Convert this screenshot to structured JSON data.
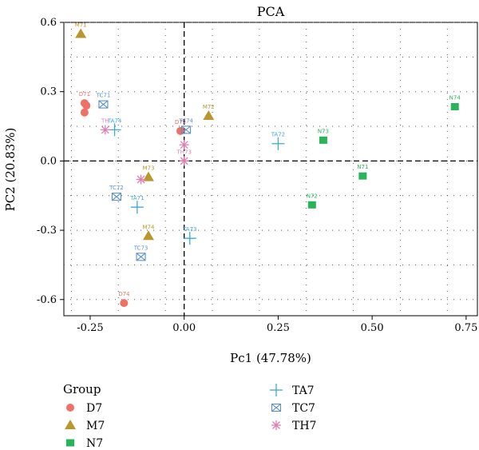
{
  "chart_data": {
    "type": "scatter",
    "title": "PCA",
    "xlabel": "Pc1 (47.78%)",
    "ylabel": "PC2 (20.83%)",
    "xlim": [
      -0.32,
      0.78
    ],
    "ylim": [
      -0.67,
      0.6
    ],
    "x_ticks": [
      -0.25,
      0.0,
      0.25,
      0.5,
      0.75
    ],
    "x_tick_labels": [
      "-0.25",
      "0.00",
      "0.25",
      "0.50",
      "0.75"
    ],
    "y_ticks": [
      -0.6,
      -0.3,
      0.0,
      0.3,
      0.6
    ],
    "y_tick_labels": [
      "-0.6",
      "-0.3",
      "0.0",
      "0.3",
      "0.6"
    ],
    "grid": "dotted",
    "reference_lines": "dashed at x=0 and y=0",
    "legend_placement": "bottom",
    "legend_title": "Group",
    "series": [
      {
        "name": "D7",
        "marker": "circle",
        "color": "#ee7066",
        "points": [
          {
            "label": "D71",
            "x": -0.265,
            "y": 0.25
          },
          {
            "label": "",
            "x": -0.26,
            "y": 0.24
          },
          {
            "label": "",
            "x": -0.265,
            "y": 0.21
          },
          {
            "label": "D72",
            "x": -0.01,
            "y": 0.13
          },
          {
            "label": "D74",
            "x": -0.16,
            "y": -0.615
          }
        ]
      },
      {
        "name": "M7",
        "marker": "triangle",
        "color": "#b9972e",
        "points": [
          {
            "label": "M71",
            "x": -0.275,
            "y": 0.55
          },
          {
            "label": "M72",
            "x": 0.065,
            "y": 0.195
          },
          {
            "label": "M73",
            "x": -0.095,
            "y": -0.07
          },
          {
            "label": "M74",
            "x": -0.095,
            "y": -0.325
          }
        ]
      },
      {
        "name": "N7",
        "marker": "square",
        "color": "#27b45a",
        "points": [
          {
            "label": "N74",
            "x": 0.72,
            "y": 0.235
          },
          {
            "label": "N73",
            "x": 0.37,
            "y": 0.09
          },
          {
            "label": "N71",
            "x": 0.475,
            "y": -0.065
          },
          {
            "label": "N72",
            "x": 0.34,
            "y": -0.19
          }
        ]
      },
      {
        "name": "TA7",
        "marker": "plus",
        "color": "#3ba9d8",
        "points": [
          {
            "label": "TA74",
            "x": -0.185,
            "y": 0.135
          },
          {
            "label": "TA72",
            "x": 0.25,
            "y": 0.075
          },
          {
            "label": "TA71",
            "x": -0.125,
            "y": -0.2
          },
          {
            "label": "TA73",
            "x": 0.015,
            "y": -0.335
          }
        ]
      },
      {
        "name": "TC7",
        "marker": "boxx",
        "color": "#5a8fc8",
        "points": [
          {
            "label": "TC71",
            "x": -0.215,
            "y": 0.245
          },
          {
            "label": "TC74",
            "x": 0.005,
            "y": 0.135
          },
          {
            "label": "TC72",
            "x": -0.18,
            "y": -0.155
          },
          {
            "label": "TC73",
            "x": -0.115,
            "y": -0.415
          }
        ]
      },
      {
        "name": "TH7",
        "marker": "star",
        "color": "#e07fb4",
        "points": [
          {
            "label": "TH",
            "x": -0.21,
            "y": 0.135
          },
          {
            "label": "",
            "x": 0.0,
            "y": 0.07
          },
          {
            "label": "TH73",
            "x": 0.0,
            "y": 0.0
          },
          {
            "label": "",
            "x": -0.115,
            "y": -0.08
          }
        ]
      }
    ]
  }
}
